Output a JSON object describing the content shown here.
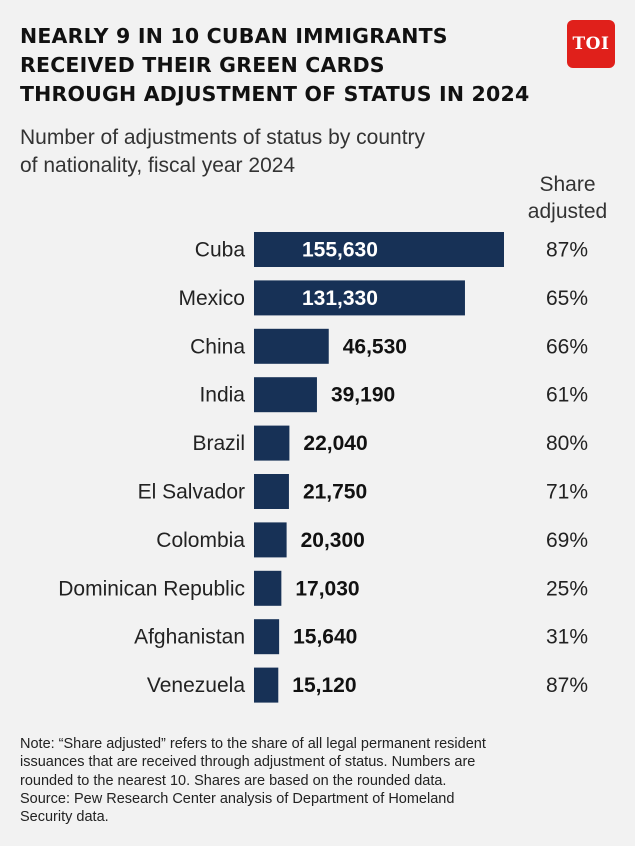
{
  "title_lines": [
    "NEARLY 9 IN 10 CUBAN IMMIGRANTS",
    "RECEIVED THEIR GREEN CARDS",
    "THROUGH ADJUSTMENT OF STATUS IN 2024"
  ],
  "logo_text": "TOI",
  "subtitle_lines": [
    "Number of adjustments of status by country",
    "of nationality, fiscal year 2024"
  ],
  "share_header_lines": [
    "Share",
    "adjusted"
  ],
  "colors": {
    "bar": "#173156",
    "bar_label_inside": "#ffffff",
    "bar_label_outside": "#111111",
    "background": "#f2f2f2",
    "logo": "#e0201b"
  },
  "chart_data": {
    "type": "bar",
    "orientation": "horizontal",
    "categories": [
      "Cuba",
      "Mexico",
      "China",
      "India",
      "Brazil",
      "El Salvador",
      "Colombia",
      "Dominican Republic",
      "Afghanistan",
      "Venezuela"
    ],
    "values": [
      155630,
      131330,
      46530,
      39190,
      22040,
      21750,
      20300,
      17030,
      15640,
      15120
    ],
    "value_labels": [
      "155,630",
      "131,330",
      "46,530",
      "39,190",
      "22,040",
      "21,750",
      "20,300",
      "17,030",
      "15,640",
      "15,120"
    ],
    "share_adjusted": [
      87,
      65,
      66,
      61,
      80,
      71,
      69,
      25,
      31,
      87
    ],
    "share_labels": [
      "87%",
      "65%",
      "66%",
      "61%",
      "80%",
      "71%",
      "69%",
      "25%",
      "31%",
      "87%"
    ]
  },
  "note_lines": [
    "Note: “Share adjusted” refers to the share of all legal permanent resident",
    "issuances that are received through adjustment of status. Numbers are",
    "rounded to the nearest 10. Shares are based on the rounded data.",
    "Source: Pew Research Center analysis of Department of Homeland",
    "Security data."
  ]
}
